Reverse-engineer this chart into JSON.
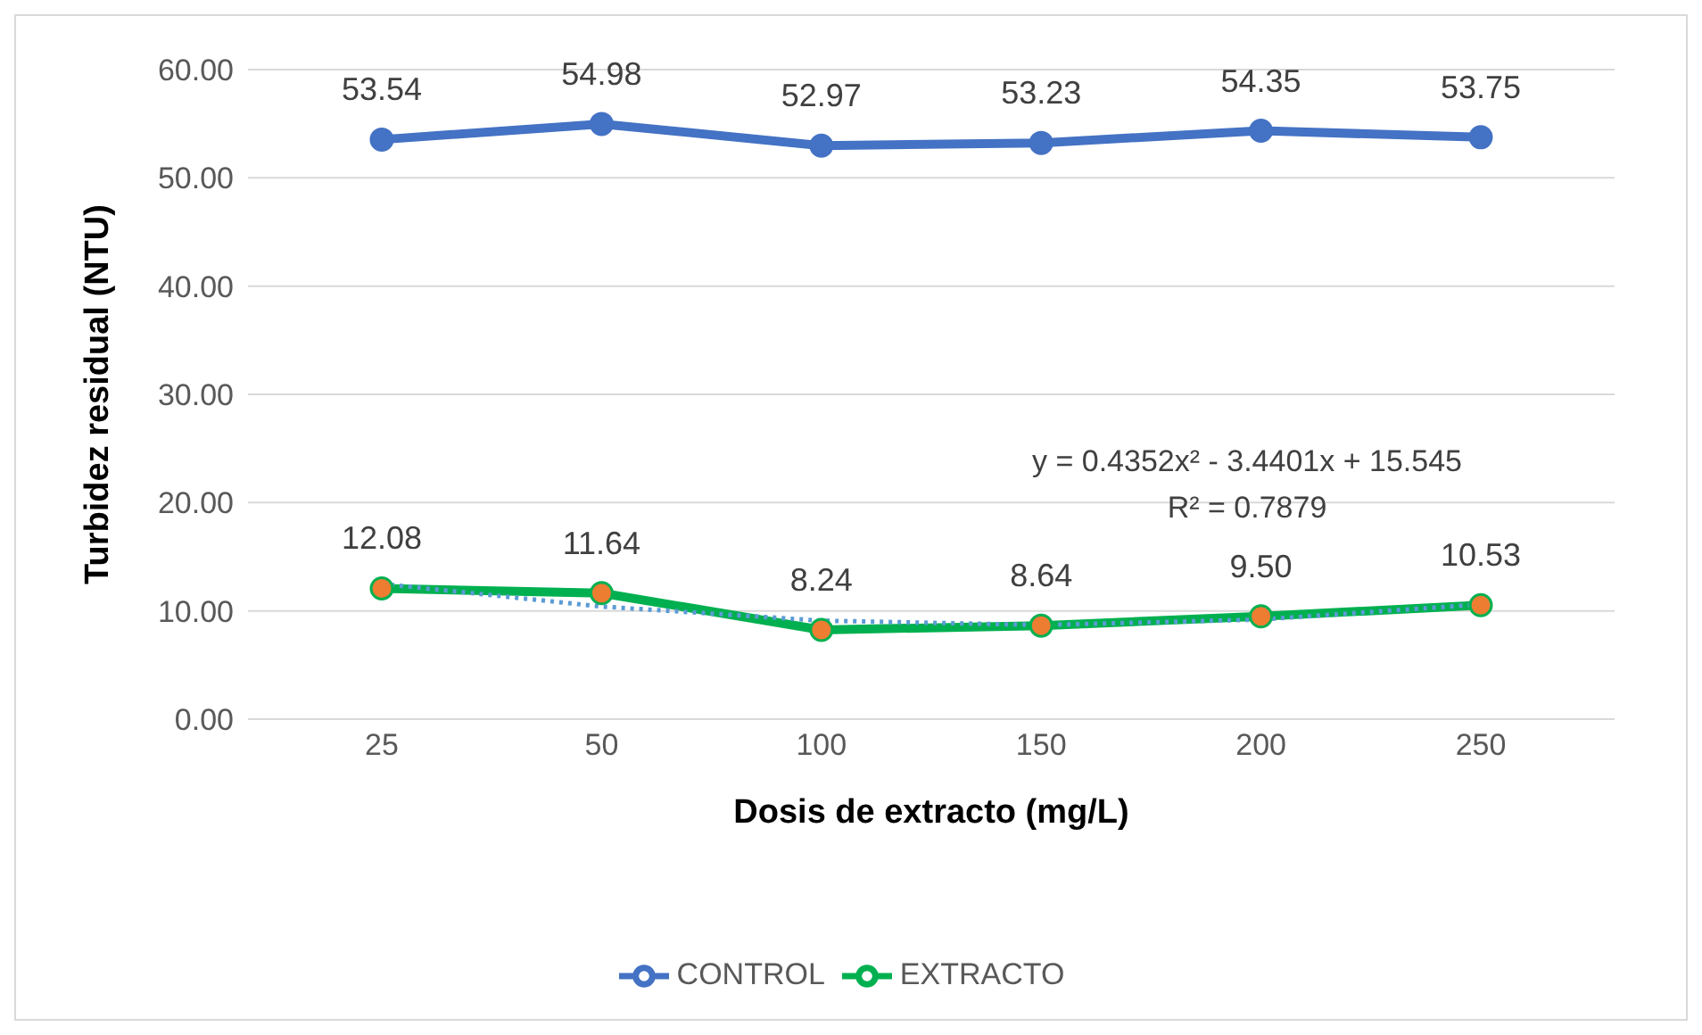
{
  "chart_data": {
    "type": "line",
    "xlabel": "Dosis de extracto (mg/L)",
    "ylabel": "Turbidez residual (NTU)",
    "categories": [
      "25",
      "50",
      "100",
      "150",
      "200",
      "250"
    ],
    "series": [
      {
        "name": "EXTRACTO",
        "color": "#00b050",
        "colors": [
          "#ed7d31",
          "#ed7d31",
          "#ed7d31",
          "#ed7d31",
          "#ed7d31",
          "#ed7d31"
        ],
        "values": [
          12.08,
          11.64,
          8.24,
          8.64,
          9.5,
          10.53
        ],
        "value_labels": [
          "12.08",
          "11.64",
          "8.24",
          "8.64",
          "9.50",
          "10.53"
        ]
      },
      {
        "name": "CONTROL",
        "color": "#4472c4",
        "values": [
          53.54,
          54.98,
          52.97,
          53.23,
          54.35,
          53.75
        ],
        "value_labels": [
          "53.54",
          "54.98",
          "52.97",
          "53.23",
          "54.35",
          "53.75"
        ]
      },
      {
        "type": "line",
        "color": "#5b9bd5",
        "line_style": "dotted",
        "marker": "none",
        "values": [
          12.5,
          10.4,
          9.1,
          8.7,
          9.2,
          10.6
        ]
      }
    ],
    "ylim": [
      0,
      60
    ],
    "yticks": [
      {
        "value": 0,
        "label": "0.00"
      },
      {
        "value": 10,
        "label": "10.00"
      },
      {
        "value": 20,
        "label": "20.00"
      },
      {
        "value": 30,
        "label": "30.00"
      },
      {
        "value": 40,
        "label": "40.00"
      },
      {
        "value": 50,
        "label": "50.00"
      },
      {
        "value": 60,
        "label": "60.00"
      }
    ],
    "annotations": [
      "y = 0.4352x² - 3.4401x + 15.545",
      "R² = 0.7879"
    ],
    "grid": "y",
    "legend": "bottom",
    "marker": "circle",
    "line_style": "solid"
  }
}
